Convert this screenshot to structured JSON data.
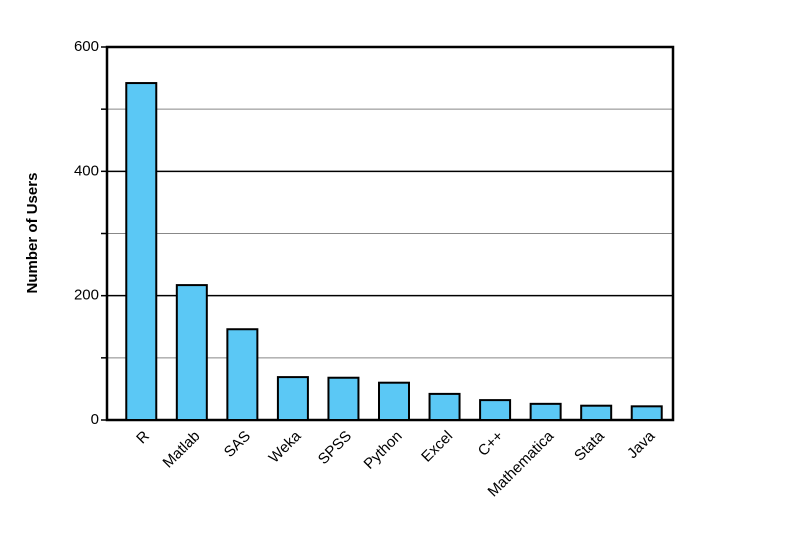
{
  "chart_data": {
    "type": "bar",
    "y_label": "Number of Users",
    "categories": [
      "R",
      "Matlab",
      "SAS",
      "Weka",
      "SPSS",
      "Python",
      "Excel",
      "C++",
      "Mathematica",
      "Stata",
      "Java"
    ],
    "values": [
      542,
      217,
      146,
      69,
      68,
      60,
      42,
      32,
      26,
      23,
      22
    ],
    "color": "#5bc8f5",
    "ylim": [
      0,
      600
    ],
    "yticks": [
      0,
      200,
      400,
      600
    ],
    "minor_yticks": [
      100,
      300,
      500
    ],
    "grid": true
  }
}
